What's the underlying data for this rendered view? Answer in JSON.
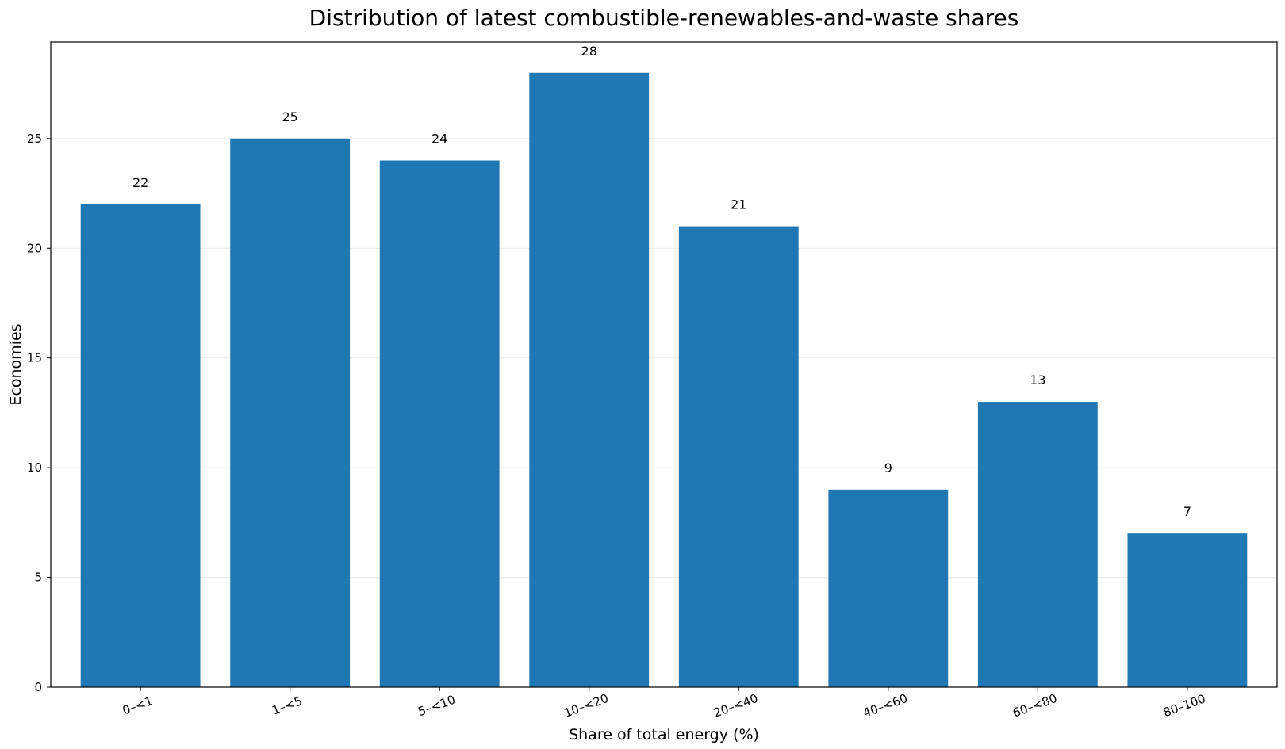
{
  "chart_data": {
    "type": "bar",
    "title": "Distribution of latest combustible-renewables-and-waste shares",
    "xlabel": "Share of total energy (%)",
    "ylabel": "Economies",
    "categories": [
      "0–<1",
      "1–<5",
      "5–<10",
      "10–<20",
      "20–<40",
      "40–<60",
      "60–<80",
      "80–100"
    ],
    "values": [
      22,
      25,
      24,
      28,
      21,
      9,
      13,
      7
    ],
    "value_labels": [
      "22",
      "25",
      "24",
      "28",
      "21",
      "9",
      "13",
      "7"
    ],
    "ylim": [
      0,
      29.4
    ],
    "yticks": [
      0,
      5,
      10,
      15,
      20,
      25
    ],
    "ytick_labels": [
      "0",
      "5",
      "10",
      "15",
      "20",
      "25"
    ],
    "grid": "horizontal",
    "legend": "none",
    "colors": {
      "bar": "#1f77b4",
      "grid": "#e8e8e8",
      "axes": "#000000"
    }
  }
}
